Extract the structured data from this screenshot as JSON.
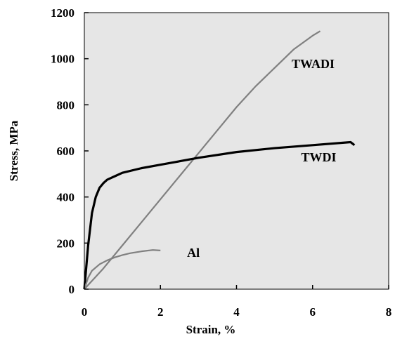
{
  "chart_data": {
    "type": "line",
    "title": "",
    "xlabel": "Strain, %",
    "ylabel": "Stress, MPa",
    "xlim": [
      0,
      8
    ],
    "ylim": [
      0,
      1200
    ],
    "xticks": [
      "0",
      "2",
      "4",
      "6",
      "8"
    ],
    "yticks": [
      "0",
      "200",
      "400",
      "600",
      "800",
      "1000",
      "1200"
    ],
    "plot_background": "#e6e6e6",
    "grid": false,
    "legend": "none",
    "series": [
      {
        "name": "TWADI",
        "color": "#808080",
        "x": [
          0.0,
          0.5,
          1.0,
          1.5,
          2.0,
          2.5,
          3.0,
          3.5,
          4.0,
          4.5,
          5.0,
          5.5,
          6.0,
          6.2
        ],
        "y": [
          0,
          90,
          190,
          290,
          390,
          490,
          590,
          690,
          790,
          880,
          960,
          1040,
          1100,
          1120
        ]
      },
      {
        "name": "TWDI",
        "color": "#000000",
        "x": [
          0.0,
          0.1,
          0.2,
          0.3,
          0.4,
          0.5,
          0.6,
          0.8,
          1.0,
          1.5,
          2.0,
          3.0,
          4.0,
          5.0,
          6.0,
          7.0,
          7.1
        ],
        "y": [
          0,
          190,
          330,
          400,
          440,
          460,
          475,
          490,
          505,
          525,
          540,
          570,
          595,
          612,
          625,
          638,
          625
        ]
      },
      {
        "name": "Al",
        "color": "#808080",
        "x": [
          0.0,
          0.1,
          0.2,
          0.4,
          0.6,
          0.8,
          1.0,
          1.2,
          1.5,
          1.8,
          2.0
        ],
        "y": [
          0,
          50,
          80,
          108,
          125,
          138,
          148,
          156,
          164,
          170,
          168
        ]
      }
    ],
    "labels": [
      {
        "text": "TWADI",
        "x": 5.45,
        "y": 960
      },
      {
        "text": "TWDI",
        "x": 5.7,
        "y": 555
      },
      {
        "text": "Al",
        "x": 2.7,
        "y": 140
      }
    ]
  }
}
